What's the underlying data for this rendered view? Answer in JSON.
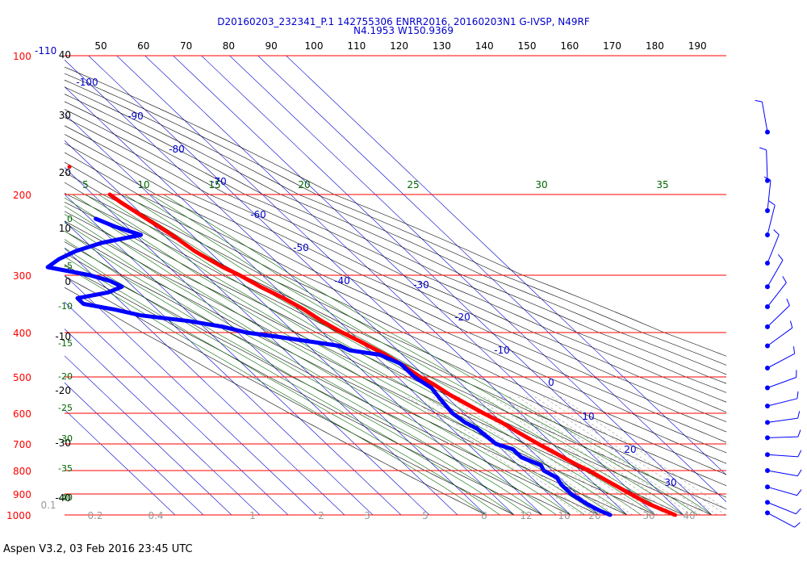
{
  "header": {
    "title_line1": "D20160203_232341_P.1 142755306 ENRR2016, 20160203N1 G-IVSP, N49RF",
    "title_line2": "N4.1953 W150.9369"
  },
  "footer": {
    "text": "Aspen V3.2, 03 Feb 2016  23:45 UTC"
  },
  "colors": {
    "isobar": "#ff0000",
    "isotherm": "#0000cc",
    "dry_adiabat": "#000000",
    "moist_adiabat": "#006600",
    "mixing_ratio": "#999999",
    "temperature": "#ff0000",
    "dewpoint": "#0000ff",
    "wind": "#0000ff"
  },
  "chart_data": {
    "type": "skew-t",
    "isobars": {
      "values": [
        100,
        200,
        300,
        400,
        500,
        600,
        700,
        800,
        900,
        1000
      ],
      "labels": [
        "100",
        "200",
        "300",
        "400",
        "500",
        "600",
        "700",
        "800",
        "900",
        "1000"
      ]
    },
    "left_labels_black": [
      "40",
      "30",
      "20",
      "10",
      "0",
      "-10",
      "-20",
      "-30",
      "-40"
    ],
    "left_labels_green": [
      "0",
      "-5",
      "-10",
      "-15",
      "-20",
      "-25",
      "-30",
      "-35",
      "-40"
    ],
    "left_label_blue_top": "-110",
    "top_labels": [
      "50",
      "60",
      "70",
      "80",
      "90",
      "100",
      "110",
      "120",
      "130",
      "140",
      "150",
      "160",
      "170",
      "180",
      "190"
    ],
    "isotherm_labels": [
      "-100",
      "-90",
      "-80",
      "-70",
      "-60",
      "-50",
      "-40",
      "-30",
      "-20",
      "-10",
      "0",
      "10",
      "20",
      "30"
    ],
    "moist_adiabat_labels": [
      "5",
      "10",
      "15",
      "20",
      "25",
      "30",
      "35"
    ],
    "mixing_ratio_labels": [
      "0.1",
      "0.2",
      "0.4",
      "1",
      "2",
      "3",
      "5",
      "8",
      "12",
      "16",
      "20",
      "30",
      "40"
    ],
    "temperature_profile": {
      "pressure": [
        200,
        210,
        230,
        250,
        270,
        290,
        300,
        320,
        340,
        360,
        380,
        400,
        420,
        450,
        470,
        500,
        520,
        550,
        580,
        600,
        630,
        660,
        700,
        740,
        780,
        800,
        850,
        900,
        950,
        1000
      ],
      "temp_c": [
        -54,
        -53,
        -50,
        -47,
        -45,
        -41,
        -38,
        -35,
        -31,
        -28,
        -26,
        -23,
        -20,
        -16,
        -14,
        -12,
        -10,
        -8,
        -5,
        -3,
        0,
        2,
        5,
        8,
        11,
        13,
        16,
        19,
        22,
        27
      ]
    },
    "dewpoint_profile": {
      "pressure": [
        230,
        240,
        250,
        260,
        270,
        280,
        290,
        300,
        310,
        320,
        330,
        340,
        350,
        360,
        370,
        380,
        390,
        400,
        410,
        420,
        430,
        440,
        450,
        470,
        500,
        530,
        560,
        600,
        630,
        650,
        700,
        720,
        750,
        780,
        800,
        830,
        860,
        900,
        950,
        980,
        1000
      ],
      "dewpoint_c": [
        -68,
        -64,
        -58,
        -75,
        -87,
        -96,
        -103,
        -91,
        -86,
        -84,
        -91,
        -104,
        -104,
        -95,
        -88,
        -73,
        -63,
        -57,
        -47,
        -38,
        -29,
        -27,
        -18,
        -14,
        -14,
        -12,
        -13,
        -14,
        -13,
        -11,
        -10,
        -6,
        -6,
        -2,
        -3,
        -1,
        -2,
        -2,
        0,
        2,
        4
      ]
    },
    "outlier_point": {
      "pressure": 180,
      "temp_c": -58
    },
    "wind_barbs": {
      "pressure": [
        155,
        190,
        220,
        250,
        285,
        320,
        355,
        390,
        430,
        480,
        530,
        580,
        630,
        680,
        740,
        800,
        870,
        940,
        990
      ]
    },
    "xlim_c": [
      -60,
      40
    ],
    "ylim_hpa": [
      100,
      1000
    ],
    "grid": "on"
  }
}
